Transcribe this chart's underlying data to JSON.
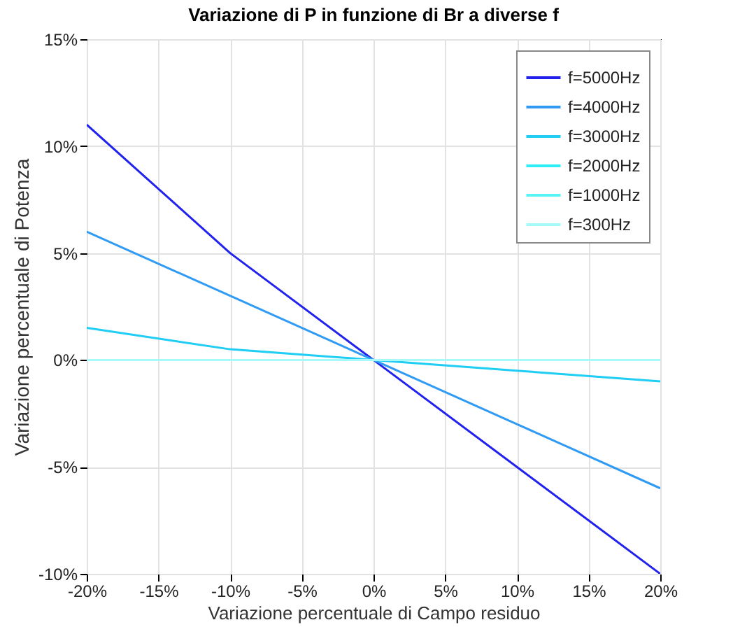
{
  "chart_data": {
    "type": "line",
    "title": "Variazione di P in funzione di Br a diverse f",
    "xlabel": "Variazione percentuale di Campo residuo",
    "ylabel": "Variazione percentuale di Potenza",
    "x": [
      -20,
      -10,
      0,
      10,
      20
    ],
    "series": [
      {
        "name": "f=5000Hz",
        "color": "#2222ee",
        "values": [
          11,
          5,
          0,
          -5,
          -10
        ]
      },
      {
        "name": "f=4000Hz",
        "color": "#2f9bf5",
        "values": [
          6,
          3,
          0,
          -3,
          -6
        ]
      },
      {
        "name": "f=3000Hz",
        "color": "#1fcdf5",
        "values": [
          1.5,
          0.5,
          0,
          -0.5,
          -1
        ]
      },
      {
        "name": "f=2000Hz",
        "color": "#2cf0f5",
        "values": [
          null,
          null,
          null,
          null,
          null
        ]
      },
      {
        "name": "f=1000Hz",
        "color": "#55f5f5",
        "values": [
          null,
          null,
          null,
          null,
          null
        ]
      },
      {
        "name": "f=300Hz",
        "color": "#a8fafa",
        "values": [
          0,
          0,
          0,
          0,
          0
        ]
      }
    ],
    "xlim": [
      -20,
      20
    ],
    "xticks": [
      {
        "value": -20,
        "label": "-20%"
      },
      {
        "value": -15,
        "label": "-15%"
      },
      {
        "value": -10,
        "label": "-10%"
      },
      {
        "value": -5,
        "label": "-5%"
      },
      {
        "value": 0,
        "label": "0%"
      },
      {
        "value": 5,
        "label": "5%"
      },
      {
        "value": 10,
        "label": "10%"
      },
      {
        "value": 15,
        "label": "15%"
      },
      {
        "value": 20,
        "label": "20%"
      }
    ],
    "ylim": [
      -10,
      15
    ],
    "yticks": [
      {
        "value": -10,
        "label": "-10%"
      },
      {
        "value": -5,
        "label": "-5%"
      },
      {
        "value": 0,
        "label": "0%"
      },
      {
        "value": 5,
        "label": "5%"
      },
      {
        "value": 10,
        "label": "10%"
      },
      {
        "value": 15,
        "label": "15%"
      }
    ],
    "grid": true,
    "legend": "top right",
    "marker": "none",
    "line_style": "solid"
  }
}
